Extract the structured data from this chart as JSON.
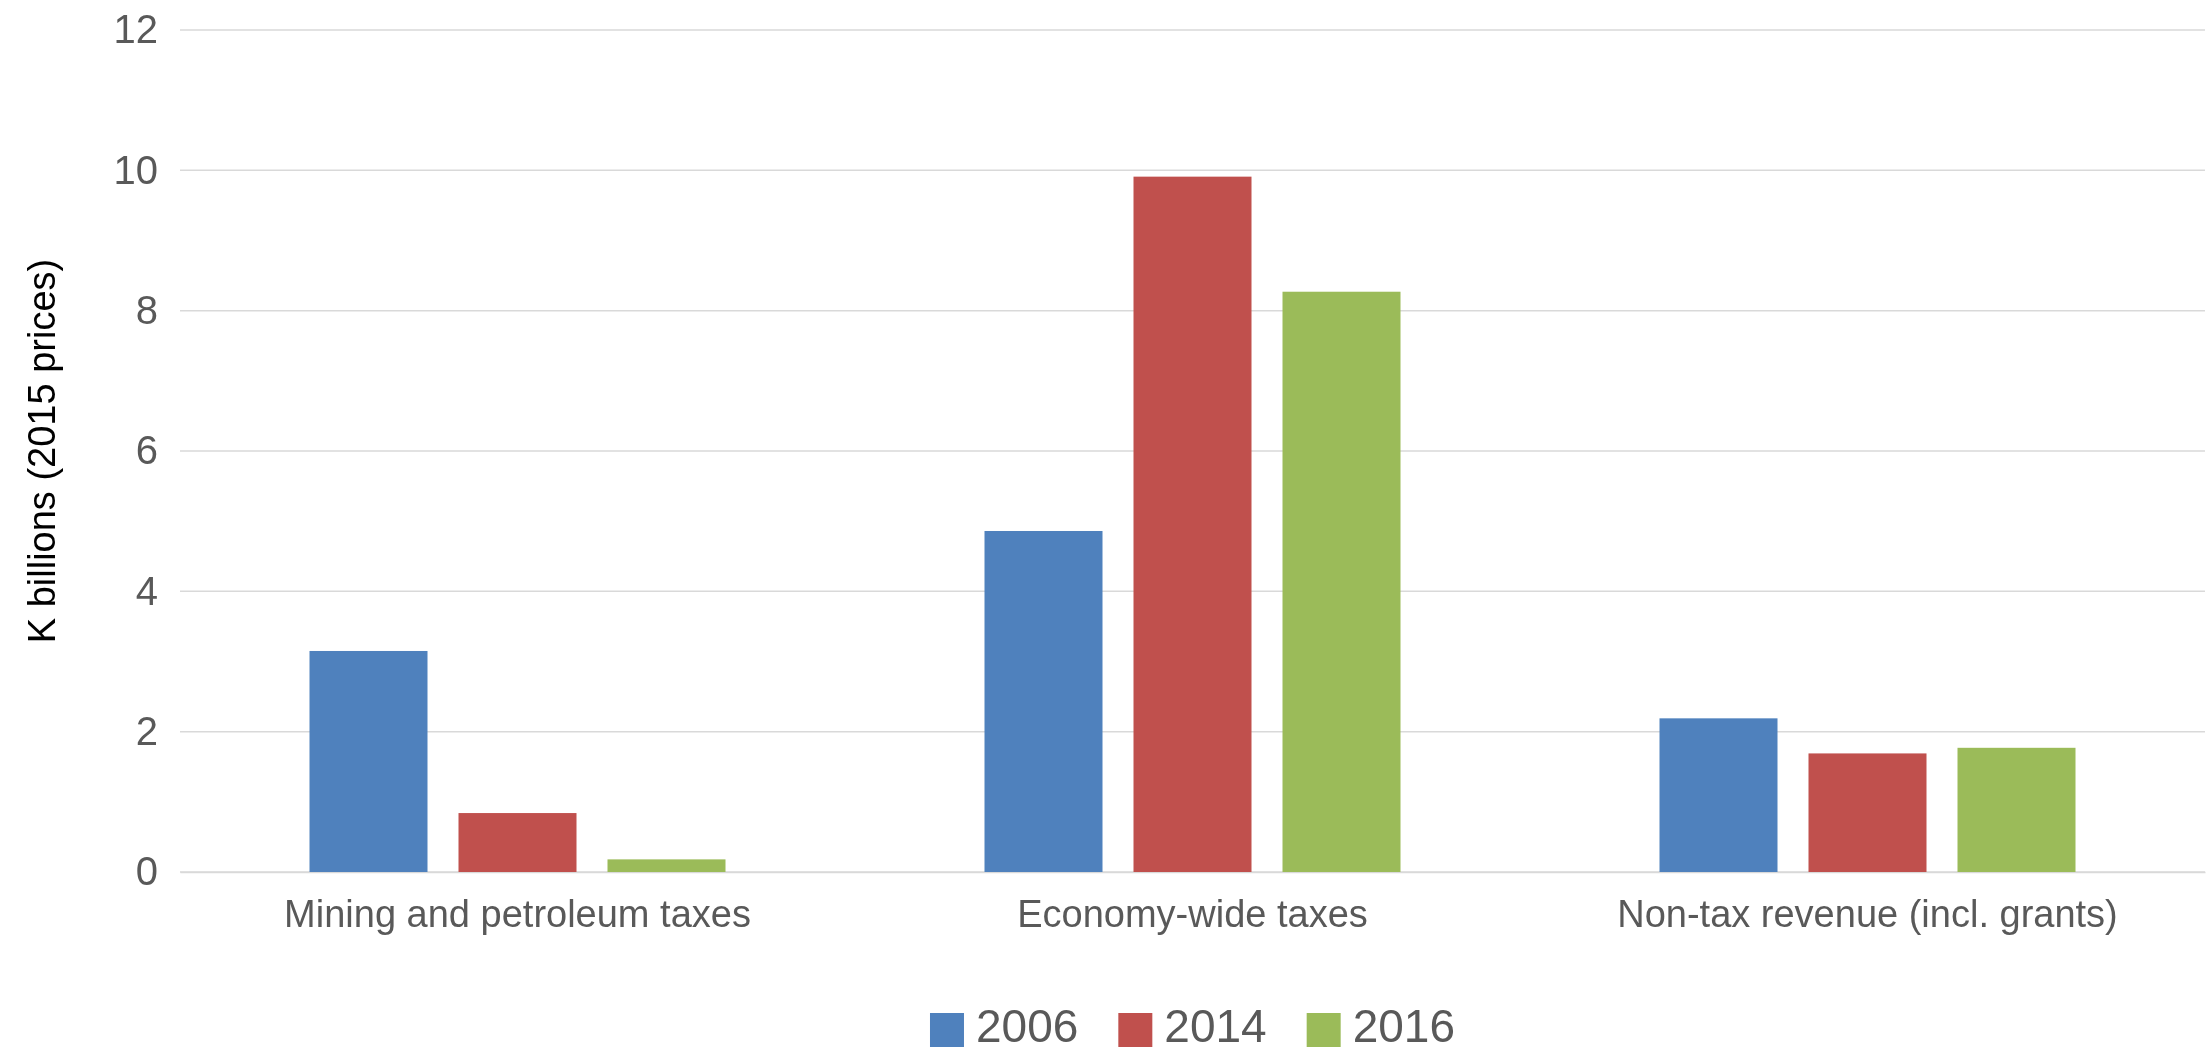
{
  "chart_data": {
    "type": "bar",
    "ylabel": "K billions (2015 prices)",
    "categories": [
      "Mining and petroleum taxes",
      "Economy-wide taxes",
      "Non-tax revenue (incl. grants)"
    ],
    "series": [
      {
        "name": "2006",
        "color": "#4f81bd",
        "values": [
          3.15,
          4.86,
          2.19
        ]
      },
      {
        "name": "2014",
        "color": "#c0504d",
        "values": [
          0.84,
          9.91,
          1.69
        ]
      },
      {
        "name": "2016",
        "color": "#9bbb59",
        "values": [
          0.18,
          8.27,
          1.77
        ]
      }
    ],
    "ylim": [
      0,
      12
    ],
    "yticks": [
      0,
      2,
      4,
      6,
      8,
      10,
      12
    ],
    "grid": "y",
    "legend": "bottom"
  }
}
